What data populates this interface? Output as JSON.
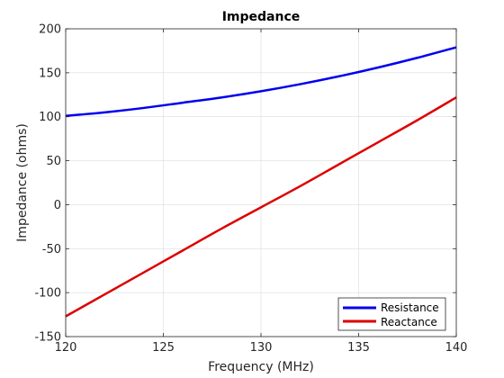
{
  "chart_data": {
    "type": "line",
    "title": "Impedance",
    "xlabel": "Frequency (MHz)",
    "ylabel": "Impedance (ohms)",
    "xlim": [
      120,
      140
    ],
    "ylim": [
      -150,
      200
    ],
    "xticks": [
      120,
      125,
      130,
      135,
      140
    ],
    "yticks": [
      -150,
      -100,
      -50,
      0,
      50,
      100,
      150,
      200
    ],
    "grid": true,
    "legend_position": "bottom-right",
    "x": [
      120,
      122,
      124,
      126,
      128,
      130,
      132,
      134,
      136,
      138,
      140
    ],
    "series": [
      {
        "name": "Resistance",
        "color": "#0000ee",
        "values": [
          101,
          105,
          110,
          116,
          122,
          129,
          137,
          146,
          156,
          167,
          179
        ]
      },
      {
        "name": "Reactance",
        "color": "#dd0000",
        "values": [
          -127,
          -102,
          -77,
          -52,
          -27,
          -3,
          21,
          46,
          71,
          96,
          122
        ]
      }
    ]
  }
}
